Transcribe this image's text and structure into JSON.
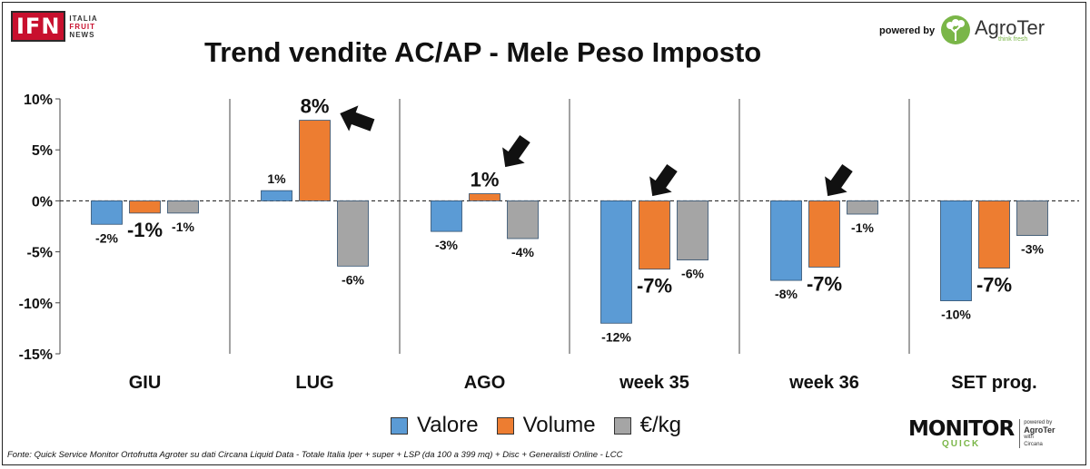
{
  "brand": {
    "ifn_logo_text": "IFN",
    "ifn_sub_1": "ITALIA",
    "ifn_sub_2": "FRUIT",
    "ifn_sub_3": "NEWS",
    "powered_by": "powered by",
    "agroter": "AgroTer",
    "agroter_tagline": "think fresh"
  },
  "monitor": {
    "main": "MONITOR",
    "quick": "QUICK",
    "side_powered": "powered by",
    "side_agroter": "AgroTer",
    "side_with": "with",
    "side_circana": "Circana"
  },
  "footer": "Fonte: Quick Service Monitor Ortofrutta Agroter su dati Circana Liquid Data - Totale Italia Iper + super + LSP (da 100 a 399 mq) + Disc + Generalisti Online - LCC",
  "colors": {
    "valore": "#5b9bd5",
    "volume": "#ed7d31",
    "eur_kg": "#a5a5a5"
  },
  "chart_data": {
    "type": "bar",
    "title": "Trend vendite AC/AP - Mele Peso Imposto",
    "categories": [
      "GIU",
      "LUG",
      "AGO",
      "week 35",
      "week 36",
      "SET prog."
    ],
    "series": [
      {
        "name": "Valore",
        "values": [
          -2.3,
          1.0,
          -3.0,
          -12.0,
          -7.8,
          -9.8
        ],
        "labels": [
          "-2%",
          "1%",
          "-3%",
          "-12%",
          "-8%",
          "-10%"
        ]
      },
      {
        "name": "Volume",
        "values": [
          -1.2,
          7.9,
          0.7,
          -6.7,
          -6.5,
          -6.6
        ],
        "labels": [
          "-1%",
          "8%",
          "1%",
          "-7%",
          "-7%",
          "-7%"
        ]
      },
      {
        "name": "€/kg",
        "values": [
          -1.2,
          -6.4,
          -3.7,
          -5.8,
          -1.3,
          -3.4
        ],
        "labels": [
          "-1%",
          "-6%",
          "-4%",
          "-6%",
          "-1%",
          "-3%"
        ]
      }
    ],
    "ylim": [
      -15,
      10
    ],
    "yticks": [
      10,
      5,
      0,
      -5,
      -10,
      -15
    ],
    "ytick_labels": [
      "10%",
      "5%",
      "0%",
      "-5%",
      "-10%",
      "-15%"
    ],
    "legend": "bottom",
    "annotations": "arrows pointing to Volume bars of LUG, AGO, week 35, week 36"
  }
}
